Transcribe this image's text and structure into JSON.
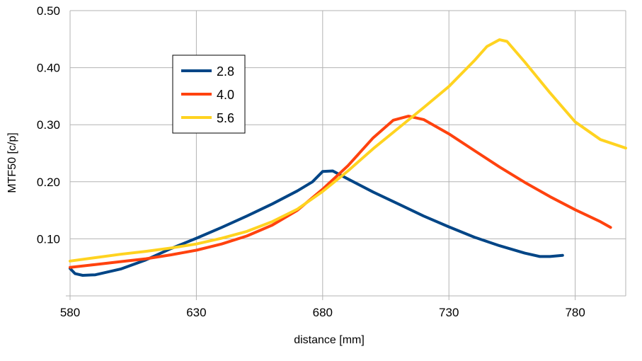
{
  "chart_data": {
    "type": "line",
    "title": "",
    "xlabel": "distance [mm]",
    "ylabel": "MTF50 [c/p]",
    "xlim": [
      580,
      800
    ],
    "ylim": [
      0,
      0.5
    ],
    "x_ticks": [
      580,
      630,
      680,
      730,
      780
    ],
    "x_tick_labels": [
      "580",
      "630",
      "680",
      "730",
      "780"
    ],
    "y_ticks": [
      0.1,
      0.2,
      0.3,
      0.4,
      0.5
    ],
    "y_tick_labels": [
      "0.10",
      "0.20",
      "0.30",
      "0.40",
      "0.50"
    ],
    "grid": true,
    "legend_position": "top-left",
    "series": [
      {
        "name": "2.8",
        "color": "#004586",
        "x": [
          580,
          582,
          585,
          590,
          600,
          610,
          620,
          630,
          640,
          650,
          660,
          670,
          676,
          680,
          684,
          690,
          700,
          710,
          720,
          730,
          740,
          750,
          760,
          766,
          770,
          775
        ],
        "values": [
          0.048,
          0.039,
          0.036,
          0.037,
          0.047,
          0.063,
          0.083,
          0.101,
          0.12,
          0.14,
          0.161,
          0.184,
          0.2,
          0.218,
          0.219,
          0.205,
          0.182,
          0.161,
          0.14,
          0.121,
          0.103,
          0.088,
          0.075,
          0.069,
          0.069,
          0.071
        ]
      },
      {
        "name": "4.0",
        "color": "#ff420e",
        "x": [
          580,
          590,
          600,
          610,
          620,
          630,
          640,
          650,
          660,
          670,
          680,
          690,
          700,
          708,
          714,
          720,
          730,
          740,
          750,
          760,
          770,
          780,
          790,
          794
        ],
        "values": [
          0.05,
          0.055,
          0.06,
          0.065,
          0.072,
          0.08,
          0.091,
          0.105,
          0.124,
          0.15,
          0.187,
          0.228,
          0.277,
          0.308,
          0.315,
          0.309,
          0.284,
          0.255,
          0.226,
          0.199,
          0.174,
          0.151,
          0.13,
          0.12
        ]
      },
      {
        "name": "5.6",
        "color": "#ffd320",
        "x": [
          580,
          590,
          600,
          610,
          620,
          630,
          640,
          650,
          660,
          670,
          680,
          690,
          700,
          710,
          720,
          730,
          740,
          745,
          750,
          753,
          760,
          770,
          780,
          790,
          800
        ],
        "values": [
          0.061,
          0.067,
          0.073,
          0.078,
          0.084,
          0.091,
          0.101,
          0.113,
          0.13,
          0.152,
          0.183,
          0.219,
          0.258,
          0.294,
          0.33,
          0.367,
          0.412,
          0.437,
          0.449,
          0.446,
          0.41,
          0.356,
          0.305,
          0.274,
          0.259
        ]
      }
    ]
  }
}
